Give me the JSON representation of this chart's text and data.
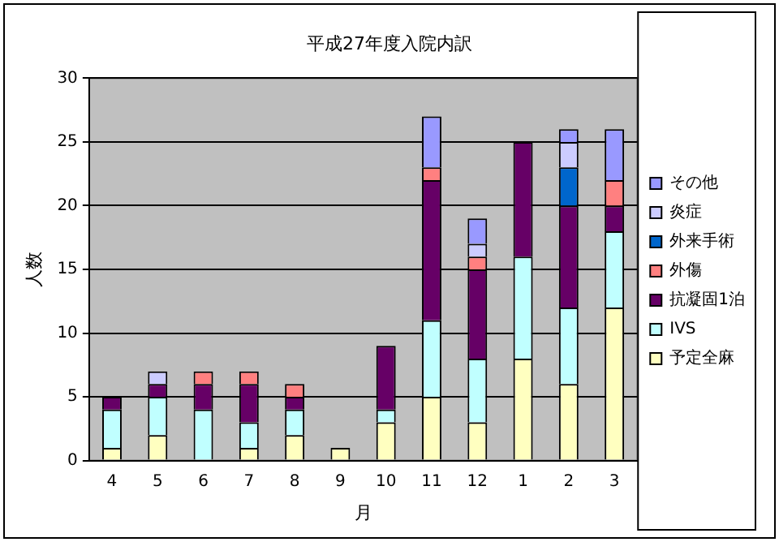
{
  "chart_data": {
    "type": "bar",
    "title": "平成27年度入院内訳",
    "xlabel": "月",
    "ylabel": "人数",
    "stacked": true,
    "categories": [
      "4",
      "5",
      "6",
      "7",
      "8",
      "9",
      "10",
      "11",
      "12",
      "1",
      "2",
      "3"
    ],
    "series": [
      {
        "name": "予定全麻",
        "color": "#ffffc0",
        "values": [
          1,
          2,
          0,
          1,
          2,
          1,
          3,
          5,
          3,
          8,
          6,
          12
        ]
      },
      {
        "name": "IVS",
        "color": "#c0ffff",
        "values": [
          3,
          3,
          4,
          2,
          2,
          0,
          1,
          6,
          5,
          8,
          6,
          6
        ]
      },
      {
        "name": "抗凝固1泊",
        "color": "#660066",
        "values": [
          1,
          1,
          2,
          3,
          1,
          0,
          5,
          11,
          7,
          9,
          8,
          2
        ]
      },
      {
        "name": "外傷",
        "color": "#ff8080",
        "values": [
          0,
          0,
          1,
          1,
          1,
          0,
          0,
          1,
          1,
          0,
          0,
          2
        ]
      },
      {
        "name": "外来手術",
        "color": "#0066cc",
        "values": [
          0,
          0,
          0,
          0,
          0,
          0,
          0,
          0,
          0,
          0,
          3,
          0
        ]
      },
      {
        "name": "炎症",
        "color": "#ccccff",
        "values": [
          0,
          1,
          0,
          0,
          0,
          0,
          0,
          0,
          1,
          0,
          2,
          0
        ]
      },
      {
        "name": "その他",
        "color": "#9999ff",
        "values": [
          0,
          0,
          0,
          0,
          0,
          0,
          0,
          4,
          2,
          0,
          1,
          4
        ]
      }
    ],
    "ylim": [
      0,
      30
    ],
    "yticks": [
      0,
      5,
      10,
      15,
      20,
      25,
      30
    ],
    "grid": "y",
    "legend": "right"
  }
}
